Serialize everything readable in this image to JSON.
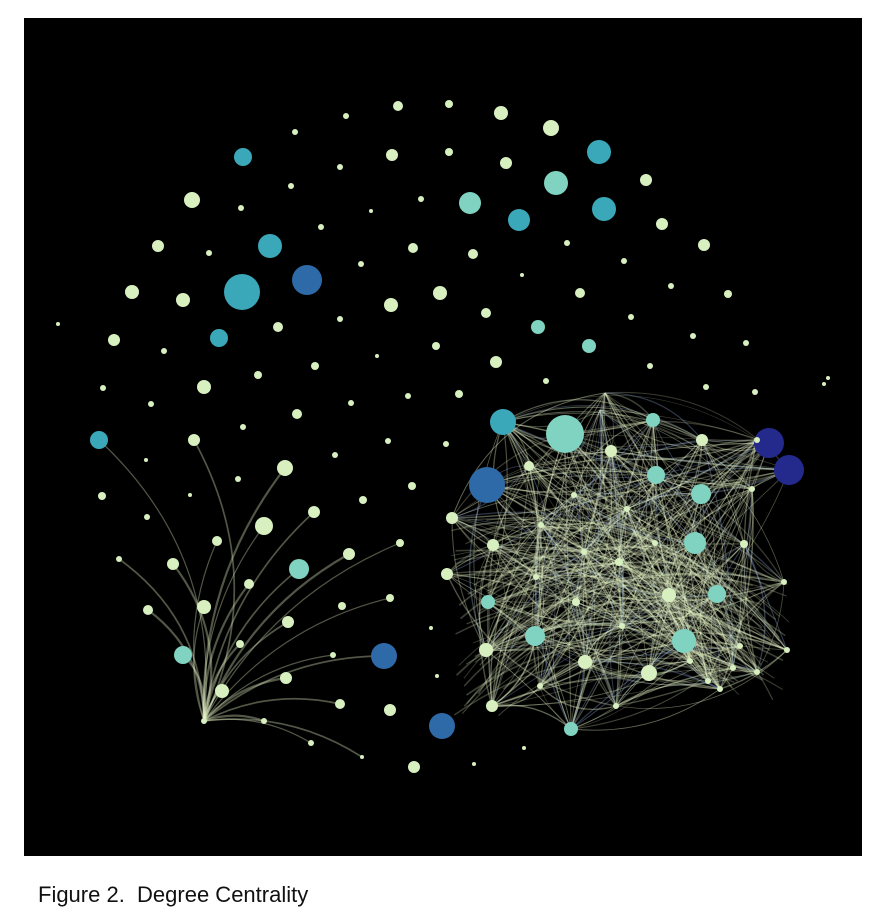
{
  "figure": {
    "caption": "Figure 2.  Degree Centrality"
  },
  "colors": {
    "background": "#000000",
    "edge_light": "#e9f7c8",
    "edge_blue": "#8fa8d8",
    "node_low": "#d8f0c0",
    "node_mid": "#7fd3c0",
    "node_teal": "#3aa8b8",
    "node_blue": "#2f6aa8",
    "node_indigo": "#232a8c"
  }
}
